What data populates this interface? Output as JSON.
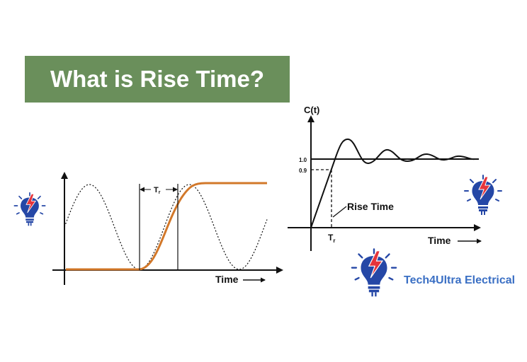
{
  "banner": {
    "title": "What is Rise Time?",
    "background_color": "#6a8f5b",
    "text_color": "#ffffff"
  },
  "left_plot": {
    "x_axis_label": "Time",
    "rise_marker_label": "T",
    "rise_marker_subscript": "r",
    "curve_color": "#d2782a",
    "reference_wave_style": "dotted"
  },
  "right_plot": {
    "y_axis_label": "C(t)",
    "x_axis_label": "Time",
    "level_high": "1.0",
    "level_low": "0.9",
    "annotation": "Rise Time",
    "rise_marker_label": "T",
    "rise_marker_subscript": "r"
  },
  "brand": {
    "name": "Tech4Ultra Electrical",
    "color": "#3a6fc4",
    "logo_icon": "lightbulb-bolt-icon",
    "logo_blue": "#2547a6",
    "logo_red": "#e5343b"
  }
}
